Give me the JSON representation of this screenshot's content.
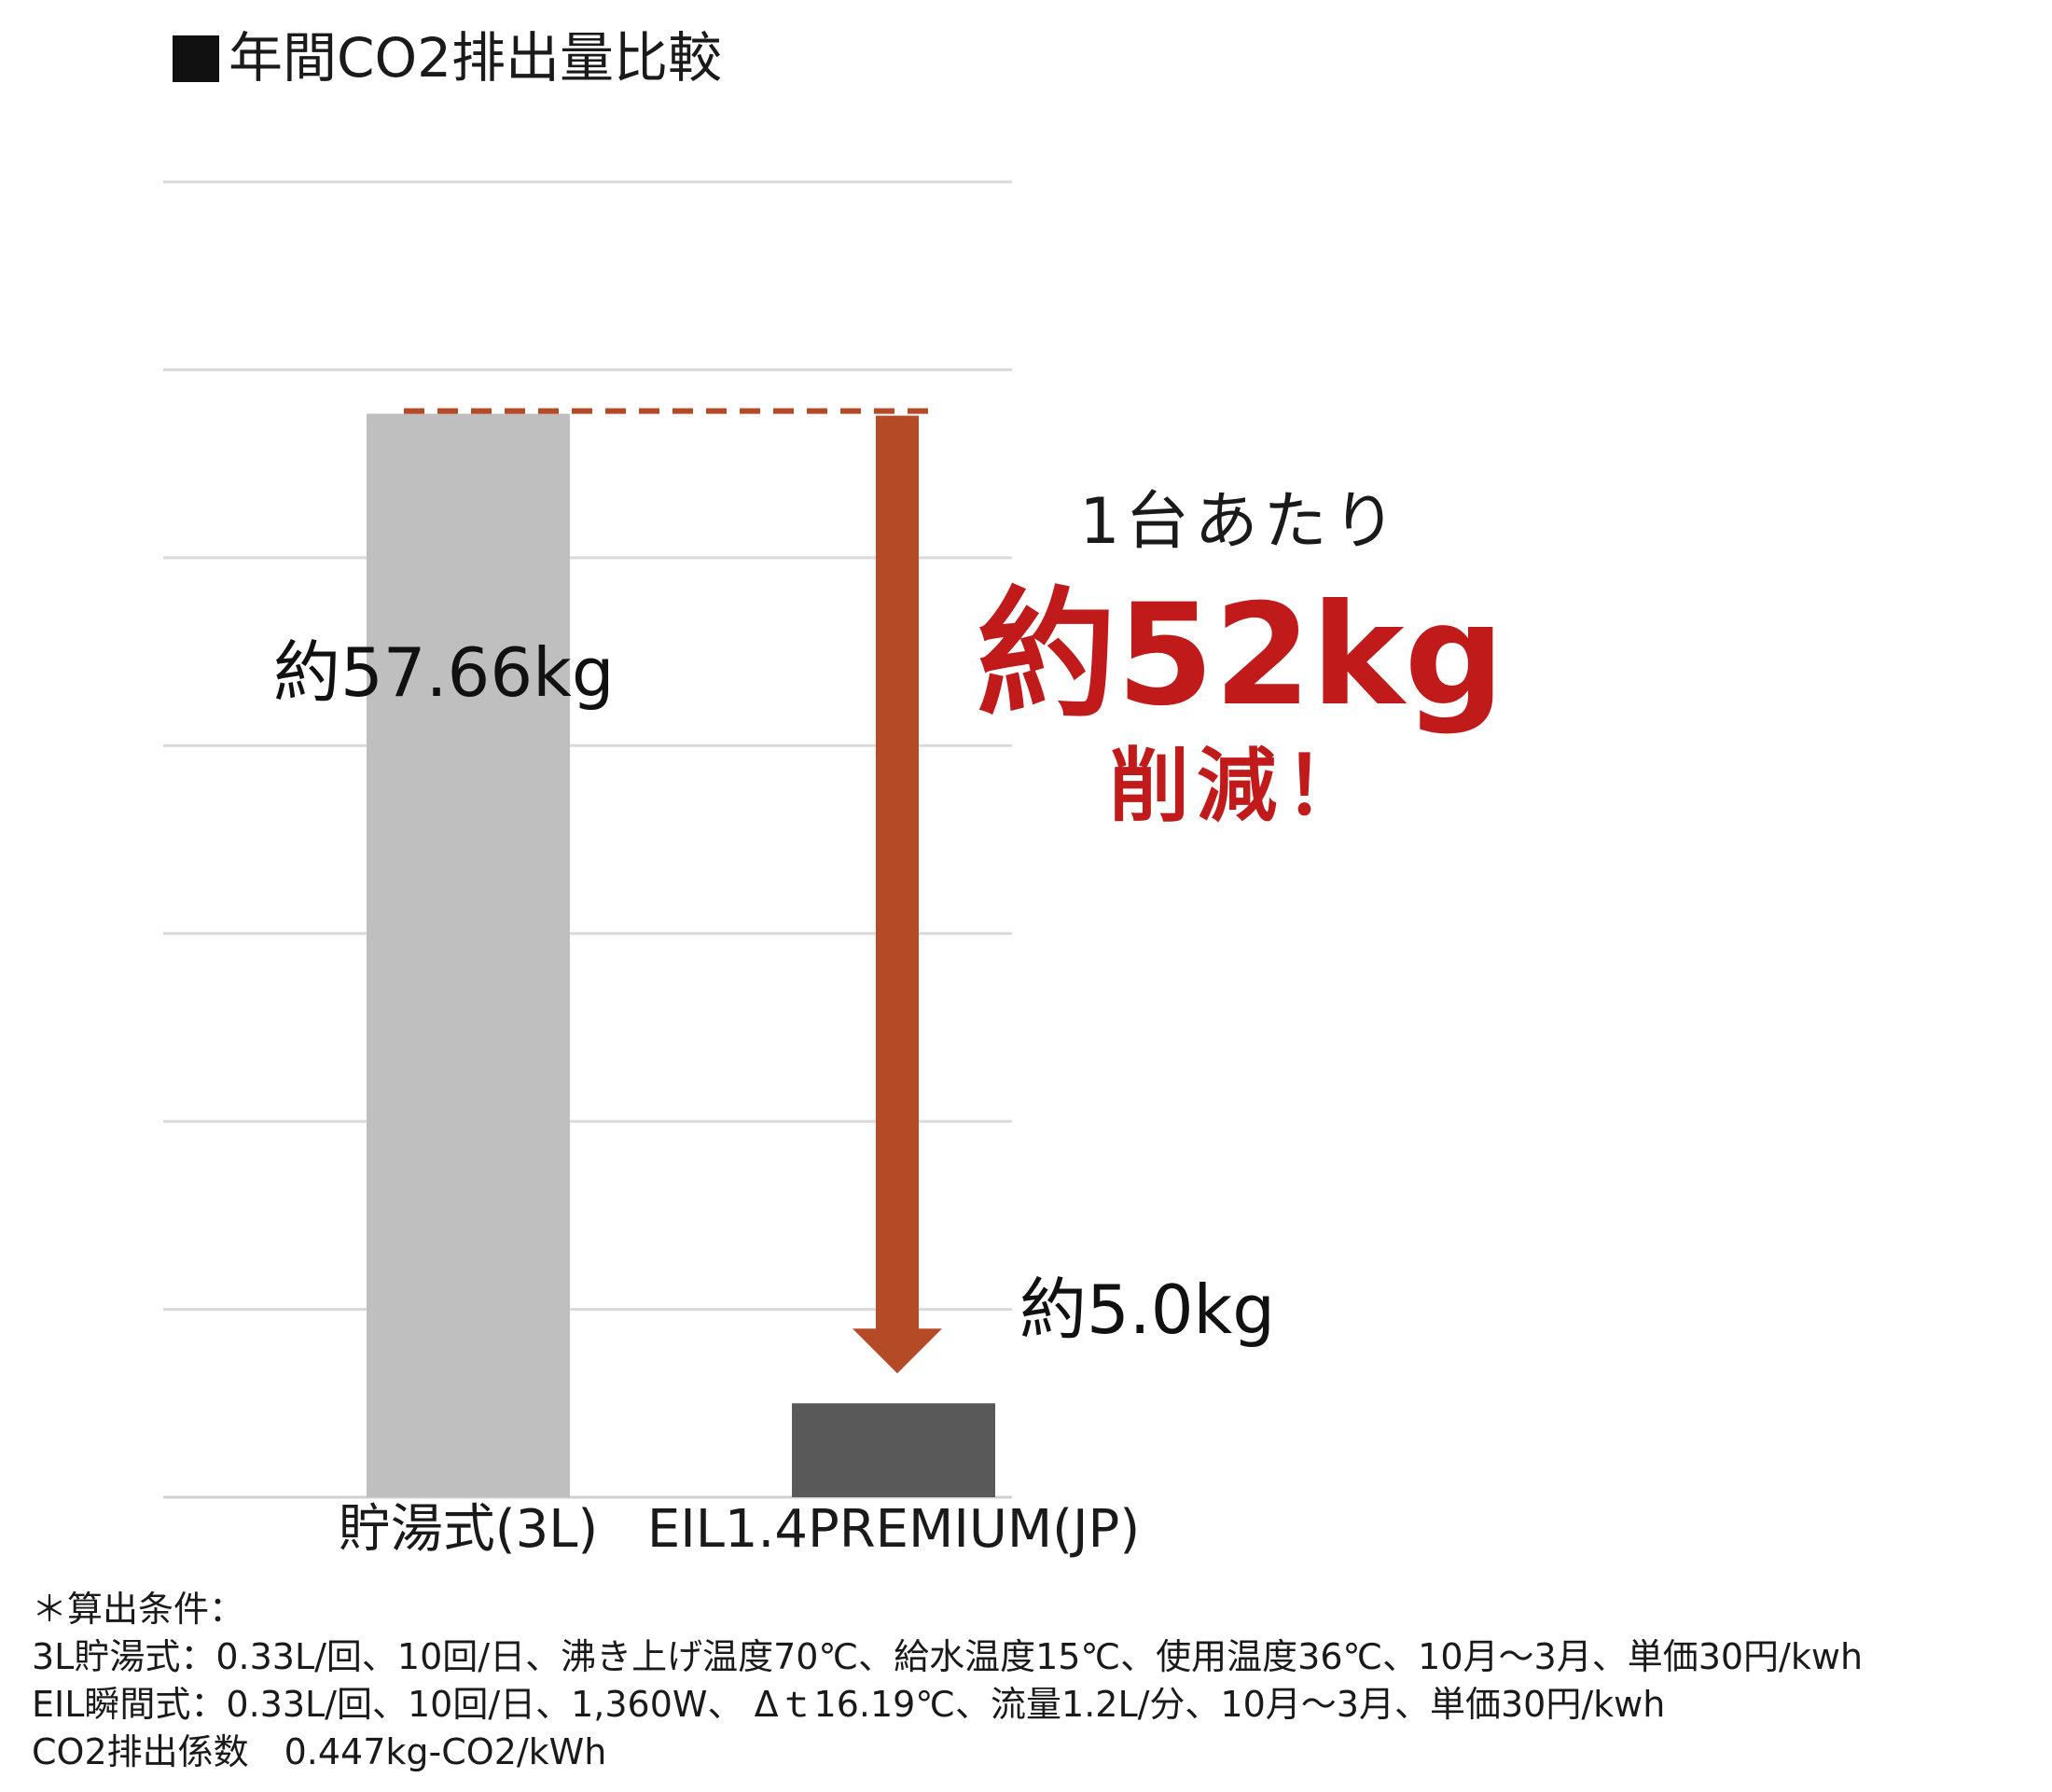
{
  "title": "■年間CO2排出量比較",
  "chart_data": {
    "type": "bar",
    "categories": [
      "貯湯式(3L)",
      "EIL1.4PREMIUM(JP)"
    ],
    "values": [
      57.66,
      5.0
    ],
    "value_labels": [
      "約57.66kg",
      "約5.0kg"
    ],
    "ylim": [
      0,
      70
    ],
    "grid": true,
    "colors": [
      "#bfbfbf",
      "#595959"
    ],
    "annotation": {
      "per_unit": "1台あたり",
      "amount": "約52kg",
      "suffix": "削減！",
      "arrow_color": "#b54a27",
      "text_color": "#c01a1a"
    }
  },
  "conditions": {
    "heading": "＊算出条件：",
    "lines": [
      "3L貯湯式：0.33L/回、10回/日、沸き上げ温度70℃、給水温度15℃、使用温度36℃、10月～3月、単価30円/kwh",
      "EIL瞬間式：0.33L/回、10回/日、1,360W、 Δｔ16.19℃、流量1.2L/分、10月～3月、単価30円/kwh",
      "CO2排出係数　0.447kg-CO2/kWh"
    ]
  }
}
